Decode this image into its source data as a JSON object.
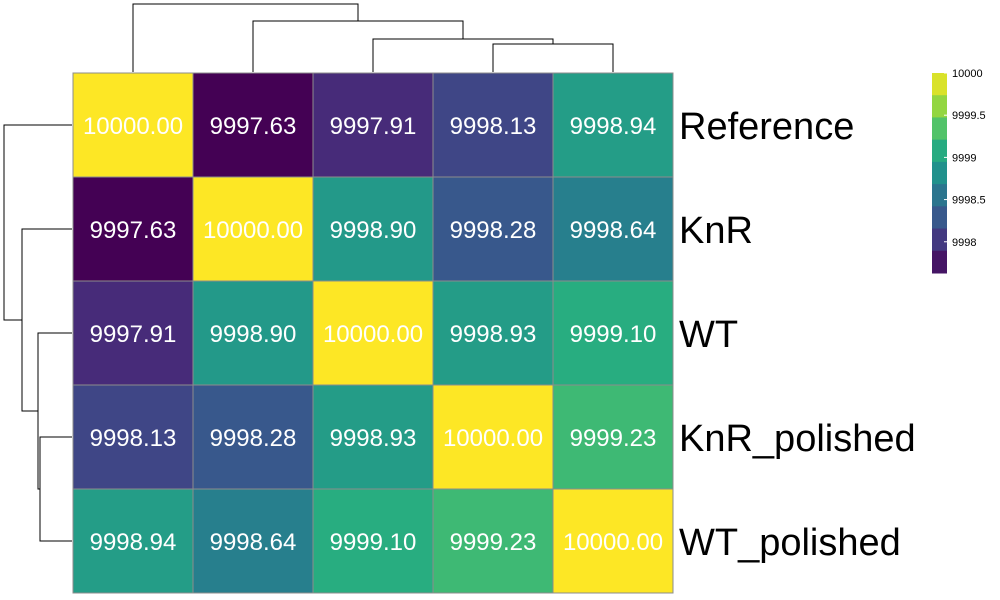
{
  "chart_data": {
    "type": "heatmap",
    "title": "",
    "xlabel": "",
    "ylabel": "",
    "row_labels": [
      "Reference",
      "KnR",
      "WT",
      "KnR_polished",
      "WT_polished"
    ],
    "values": [
      [
        10000.0,
        9997.63,
        9997.91,
        9998.13,
        9998.94
      ],
      [
        9997.63,
        10000.0,
        9998.9,
        9998.28,
        9998.64
      ],
      [
        9997.91,
        9998.9,
        10000.0,
        9998.93,
        9999.1
      ],
      [
        9998.13,
        9998.28,
        9998.93,
        10000.0,
        9999.23
      ],
      [
        9998.94,
        9998.64,
        9999.1,
        9999.23,
        10000.0
      ]
    ],
    "cell_labels": [
      [
        "10000.00",
        "9997.63",
        "9997.91",
        "9998.13",
        "9998.94"
      ],
      [
        "9997.63",
        "10000.00",
        "9998.90",
        "9998.28",
        "9998.64"
      ],
      [
        "9997.91",
        "9998.90",
        "10000.00",
        "9998.93",
        "9999.10"
      ],
      [
        "9998.13",
        "9998.28",
        "9998.93",
        "10000.00",
        "9999.23"
      ],
      [
        "9998.94",
        "9998.64",
        "9999.10",
        "9999.23",
        "10000.00"
      ]
    ],
    "color_range": [
      9997.63,
      10000.0
    ],
    "colormap": [
      "#440154",
      "#472d7b",
      "#3b528b",
      "#2c728e",
      "#21918c",
      "#28ae80",
      "#5ec962",
      "#addc30",
      "#fde725"
    ],
    "legend": {
      "placement": "top-right",
      "ticks": [
        {
          "value": 10000,
          "label": "10000"
        },
        {
          "value": 9999.5,
          "label": "9999.5"
        },
        {
          "value": 9999,
          "label": "9999"
        },
        {
          "value": 9998.5,
          "label": "9998.5"
        },
        {
          "value": 9998,
          "label": "9998"
        }
      ]
    },
    "dendrogram": {
      "order": [
        "Reference",
        "KnR",
        "WT",
        "KnR_polished",
        "WT_polished"
      ],
      "merges": [
        {
          "left": "KnR_polished",
          "right": "WT_polished",
          "height": 1
        },
        {
          "left": "WT",
          "right": "KnR_polished+WT_polished",
          "height": 2
        },
        {
          "left": "KnR",
          "right": "WT+KnR_polished+WT_polished",
          "height": 3
        },
        {
          "left": "Reference",
          "right": "rest",
          "height": 4
        }
      ]
    }
  }
}
